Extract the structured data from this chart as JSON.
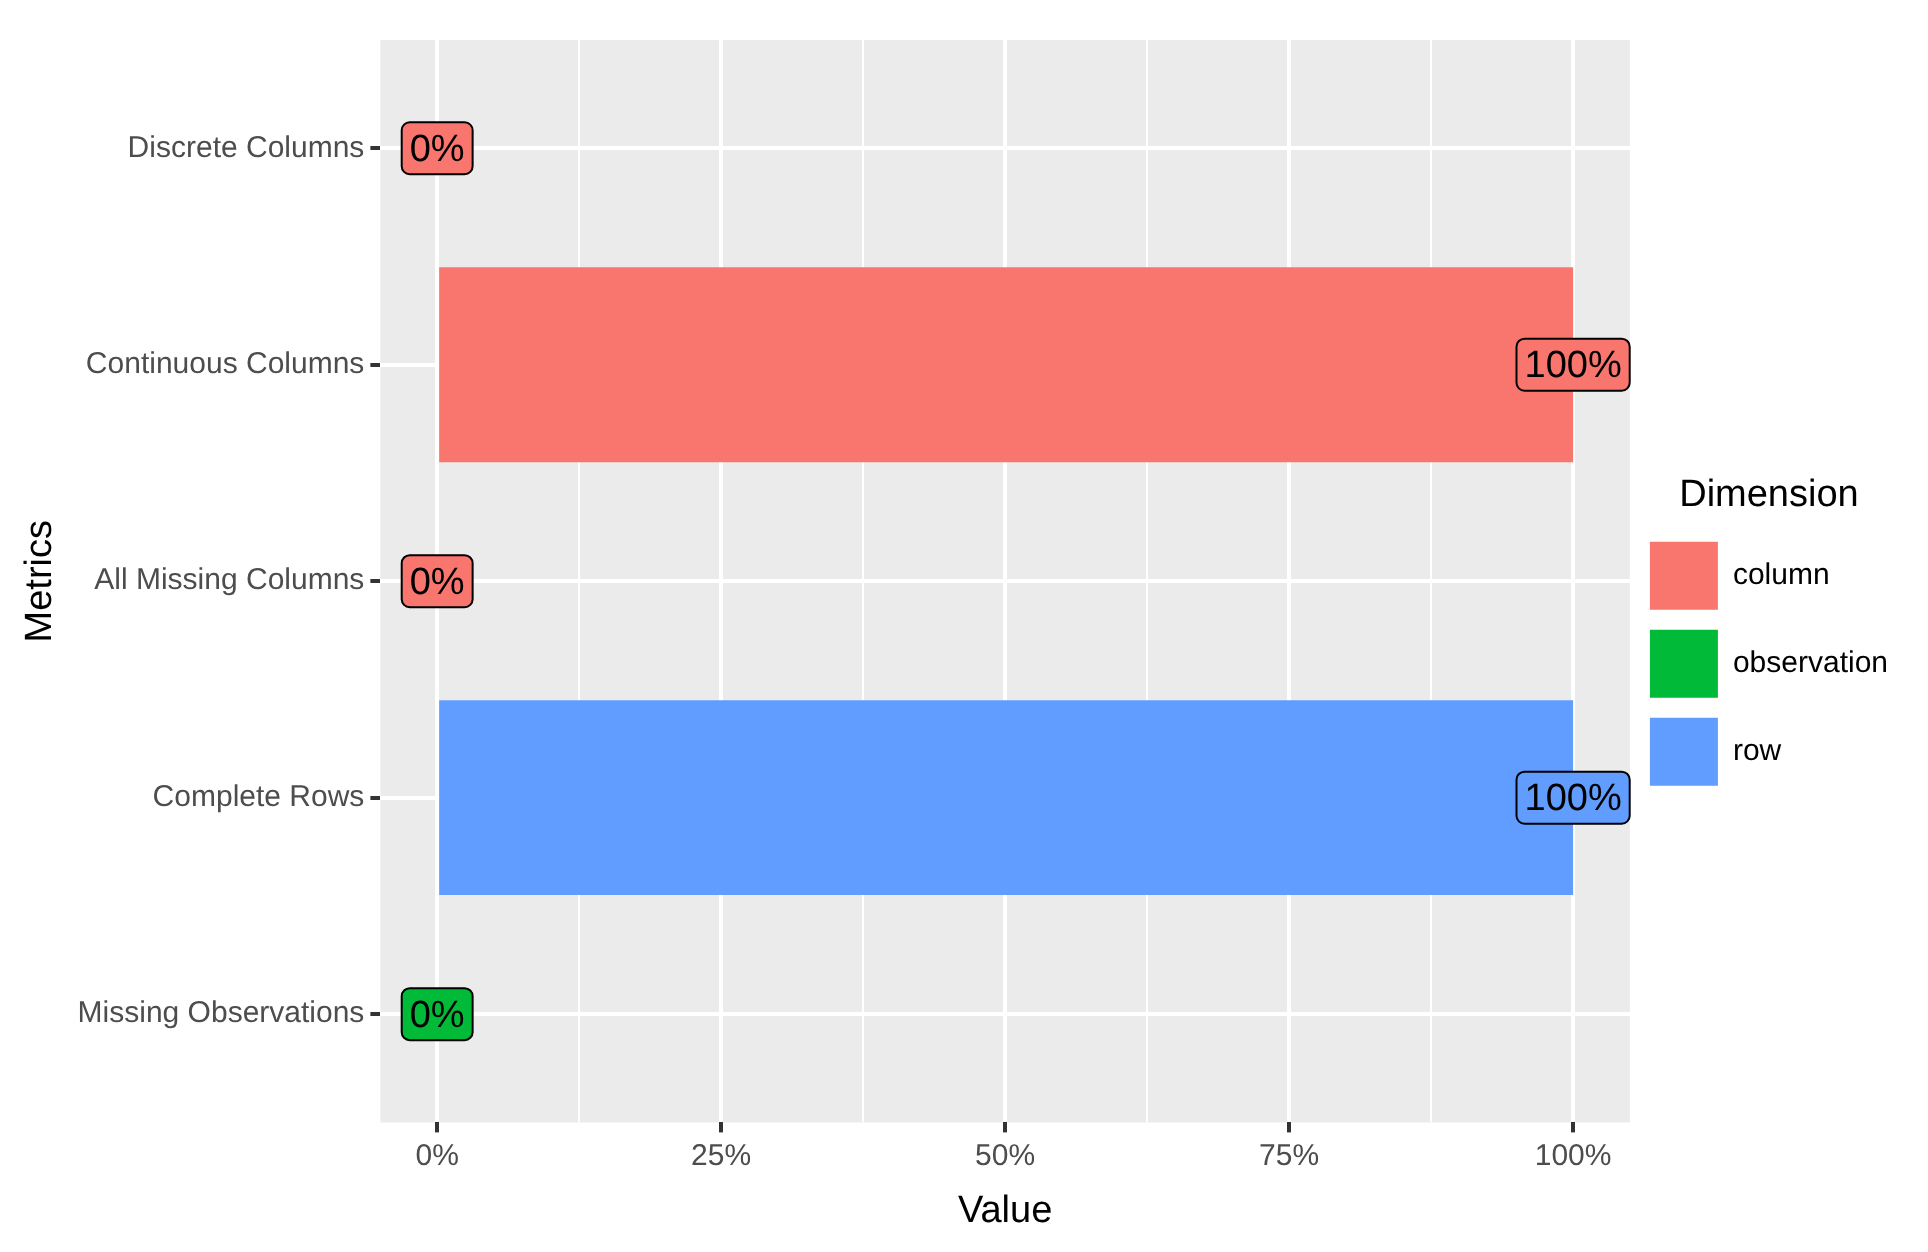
{
  "chart_data": {
    "type": "bar",
    "orientation": "horizontal",
    "stacked": true,
    "categories": [
      "Discrete Columns",
      "Continuous Columns",
      "All Missing Columns",
      "Complete Rows",
      "Missing Observations"
    ],
    "series": [
      {
        "name": "column",
        "color": "#f8766d",
        "values": [
          0,
          100,
          0,
          null,
          null
        ],
        "value_labels": [
          "0%",
          "100%",
          "0%",
          null,
          null
        ]
      },
      {
        "name": "observation",
        "color": "#00ba38",
        "values": [
          null,
          null,
          null,
          null,
          0
        ],
        "value_labels": [
          null,
          null,
          null,
          null,
          "0%"
        ]
      },
      {
        "name": "row",
        "color": "#619cff",
        "values": [
          null,
          null,
          null,
          100,
          null
        ],
        "value_labels": [
          null,
          null,
          null,
          "100%",
          null
        ]
      }
    ],
    "xlabel": "Value",
    "ylabel": "Metrics",
    "legend_title": "Dimension",
    "legend": "right",
    "grid": true,
    "xlim": [
      -5,
      105
    ],
    "xticks": [
      {
        "value": 0,
        "label": "0%"
      },
      {
        "value": 12.5,
        "label": null
      },
      {
        "value": 25,
        "label": "25%"
      },
      {
        "value": 37.5,
        "label": null
      },
      {
        "value": 50,
        "label": "50%"
      },
      {
        "value": 62.5,
        "label": null
      },
      {
        "value": 75,
        "label": "75%"
      },
      {
        "value": 87.5,
        "label": null
      },
      {
        "value": 100,
        "label": "100%"
      }
    ]
  }
}
